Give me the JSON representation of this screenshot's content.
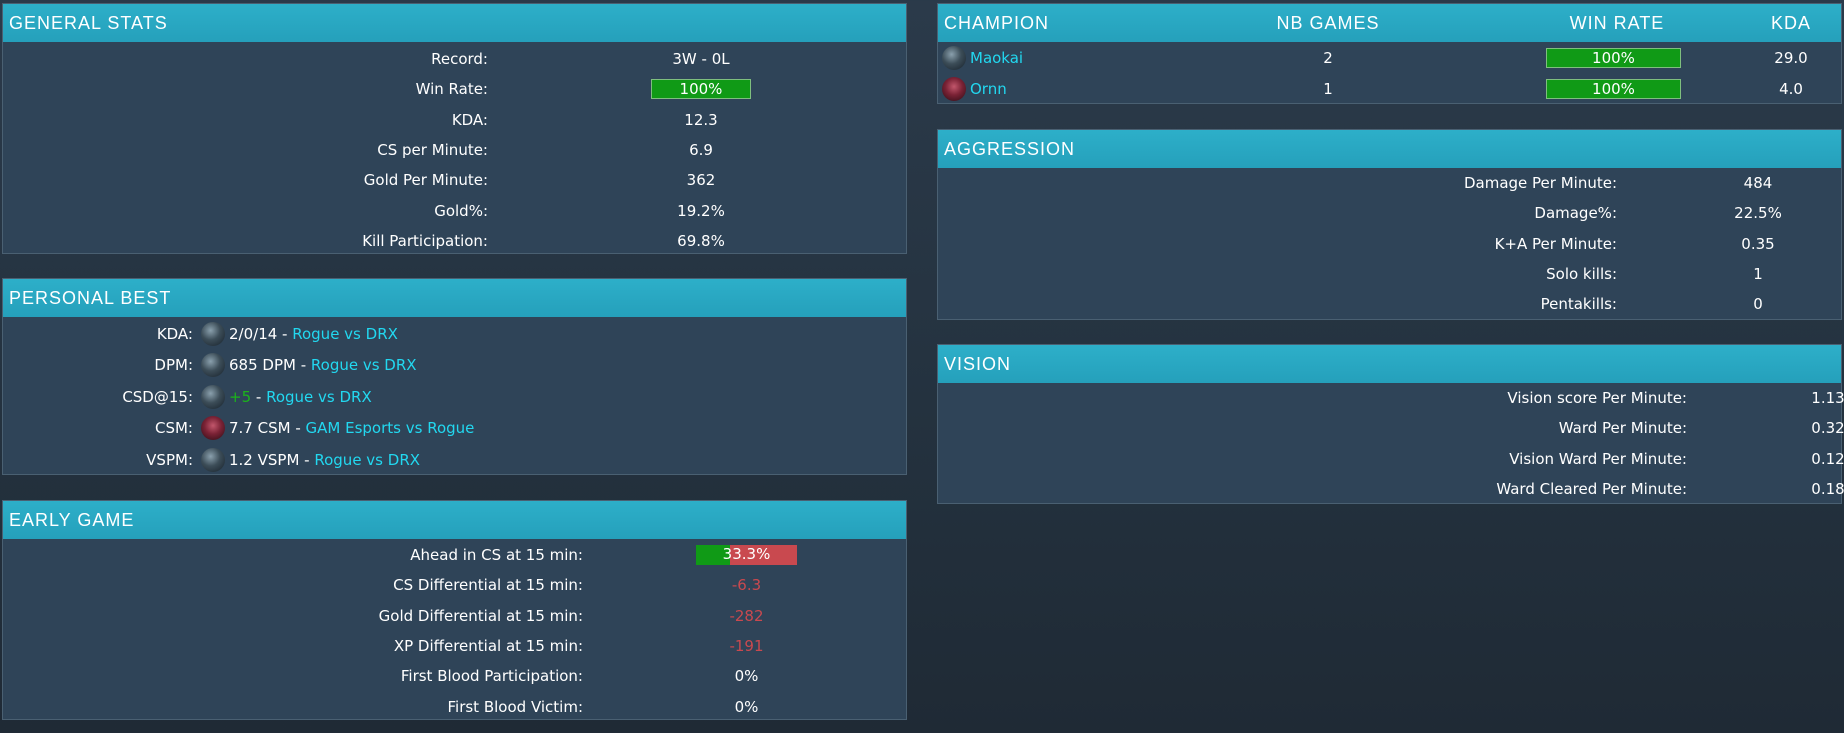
{
  "general_stats": {
    "title": "GENERAL STATS",
    "rows": [
      {
        "label": "Record:",
        "value": "3W - 0L"
      },
      {
        "label": "Win Rate:",
        "value": "100%",
        "bar_fraction": 1.0
      },
      {
        "label": "KDA:",
        "value": "12.3"
      },
      {
        "label": "CS per Minute:",
        "value": "6.9"
      },
      {
        "label": "Gold Per Minute:",
        "value": "362"
      },
      {
        "label": "Gold%:",
        "value": "19.2%"
      },
      {
        "label": "Kill Participation:",
        "value": "69.8%"
      }
    ]
  },
  "personal_best": {
    "title": "PERSONAL BEST",
    "rows": [
      {
        "label": "KDA:",
        "champion_icon": "maokai-icon",
        "value": "2/0/14",
        "sep": " - ",
        "match": "Rogue vs DRX"
      },
      {
        "label": "DPM:",
        "champion_icon": "maokai-icon",
        "value": "685 DPM",
        "sep": " - ",
        "match": "Rogue vs DRX"
      },
      {
        "label": "CSD@15:",
        "champion_icon": "maokai-icon",
        "value": "+5",
        "sep": " - ",
        "match": "Rogue vs DRX",
        "value_color": "#1bb31b"
      },
      {
        "label": "CSM:",
        "champion_icon": "ornn-icon",
        "value": "7.7 CSM",
        "sep": " - ",
        "match": "GAM Esports vs Rogue"
      },
      {
        "label": "VSPM:",
        "champion_icon": "maokai-icon",
        "value": "1.2 VSPM",
        "sep": " - ",
        "match": "Rogue vs DRX"
      }
    ]
  },
  "early_game": {
    "title": "EARLY GAME",
    "rows": [
      {
        "label": "Ahead in CS at 15 min:",
        "value": "33.3%",
        "bar_fraction": 0.333
      },
      {
        "label": "CS Differential at 15 min:",
        "value": "-6.3",
        "negative": true
      },
      {
        "label": "Gold Differential at 15 min:",
        "value": "-282",
        "negative": true
      },
      {
        "label": "XP Differential at 15 min:",
        "value": "-191",
        "negative": true
      },
      {
        "label": "First Blood Participation:",
        "value": "0%"
      },
      {
        "label": "First Blood Victim:",
        "value": "0%"
      }
    ]
  },
  "champions": {
    "headers": {
      "champion": "CHAMPION",
      "games": "NB GAMES",
      "winrate": "WIN RATE",
      "kda": "KDA"
    },
    "rows": [
      {
        "icon": "maokai-icon",
        "name": "Maokai",
        "games": "2",
        "winrate": "100%",
        "winrate_fraction": 1.0,
        "kda": "29.0"
      },
      {
        "icon": "ornn-icon",
        "name": "Ornn",
        "games": "1",
        "winrate": "100%",
        "winrate_fraction": 1.0,
        "kda": "4.0"
      }
    ]
  },
  "aggression": {
    "title": "AGGRESSION",
    "rows": [
      {
        "label": "Damage Per Minute:",
        "value": "484"
      },
      {
        "label": "Damage%:",
        "value": "22.5%"
      },
      {
        "label": "K+A Per Minute:",
        "value": "0.35"
      },
      {
        "label": "Solo kills:",
        "value": "1"
      },
      {
        "label": "Pentakills:",
        "value": "0"
      }
    ]
  },
  "vision": {
    "title": "VISION",
    "rows": [
      {
        "label": "Vision score Per Minute:",
        "value": "1.13"
      },
      {
        "label": "Ward Per Minute:",
        "value": "0.32"
      },
      {
        "label": "Vision Ward Per Minute:",
        "value": "0.12"
      },
      {
        "label": "Ward Cleared Per Minute:",
        "value": "0.18"
      }
    ]
  },
  "colors": {
    "header": "#2dafc9",
    "panel": "#2f4458",
    "bar_green": "#109a16",
    "bar_red": "#c9494f",
    "link": "#22d8f0",
    "negative": "#c9494f",
    "positive": "#1bb31b"
  }
}
